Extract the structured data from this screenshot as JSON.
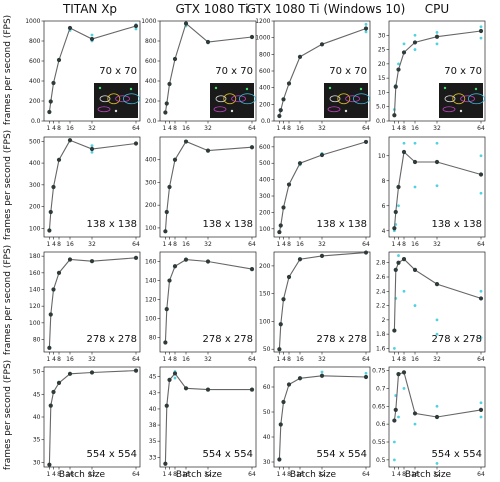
{
  "figure": {
    "ylabel": "frames per second (FPS)",
    "xlabel": "Batch size",
    "columns": [
      "TITAN Xp",
      "GTX 1080 Ti",
      "GTX 1080 Ti (Windows 10)",
      "CPU"
    ],
    "rows": [
      "70 x 70",
      "138 x 138",
      "278 x 278",
      "554 x 554"
    ],
    "x_ticks": [
      1,
      4,
      8,
      16,
      32,
      64
    ],
    "x_tick_labels": [
      "1",
      "4",
      "8",
      "16",
      "32",
      "64"
    ],
    "colors": {
      "line": "#666666",
      "mean_marker": "#2f3b3b",
      "raw_marker": "#4fd3e0",
      "text": "#111111"
    }
  },
  "chart_data": [
    {
      "type": "line",
      "column": "TITAN Xp",
      "resolution": "70 x 70",
      "ylim": [
        0,
        1000
      ],
      "yticks": [
        0,
        200,
        400,
        600,
        800,
        1000
      ],
      "x": [
        1,
        2,
        4,
        8,
        16,
        32,
        64
      ],
      "values": [
        90,
        195,
        380,
        610,
        930,
        820,
        950
      ],
      "raw": [
        [
          16,
          905
        ],
        [
          32,
          860
        ],
        [
          32,
          800
        ],
        [
          64,
          920
        ],
        [
          64,
          965
        ]
      ]
    },
    {
      "type": "line",
      "column": "GTX 1080 Ti",
      "resolution": "70 x 70",
      "ylim": [
        0,
        1000
      ],
      "yticks": [
        0,
        200,
        400,
        600,
        800,
        1000
      ],
      "x": [
        1,
        2,
        4,
        8,
        16,
        32,
        64
      ],
      "values": [
        85,
        175,
        370,
        620,
        975,
        790,
        840
      ],
      "raw": [
        [
          16,
          950
        ],
        [
          32,
          780
        ]
      ]
    },
    {
      "type": "line",
      "column": "GTX 1080 Ti (Windows 10)",
      "resolution": "70 x 70",
      "ylim": [
        0,
        1200
      ],
      "yticks": [
        0,
        200,
        400,
        600,
        800,
        1000,
        1200
      ],
      "x": [
        1,
        2,
        4,
        8,
        16,
        32,
        64
      ],
      "values": [
        60,
        130,
        260,
        450,
        770,
        920,
        1110
      ],
      "raw": [
        [
          64,
          1160
        ],
        [
          64,
          1070
        ]
      ]
    },
    {
      "type": "line",
      "column": "CPU",
      "resolution": "70 x 70",
      "ylim": [
        0,
        35
      ],
      "yticks": [
        0,
        5,
        10,
        15,
        20,
        25,
        30
      ],
      "x": [
        1,
        2,
        4,
        8,
        16,
        32,
        64
      ],
      "values": [
        2,
        12,
        18,
        24,
        27.5,
        29.5,
        31.5
      ],
      "raw": [
        [
          1,
          4
        ],
        [
          2,
          12.5
        ],
        [
          4,
          20
        ],
        [
          8,
          27
        ],
        [
          16,
          30
        ],
        [
          16,
          25
        ],
        [
          32,
          31
        ],
        [
          32,
          27
        ],
        [
          64,
          33
        ],
        [
          64,
          29
        ]
      ]
    },
    {
      "type": "line",
      "column": "TITAN Xp",
      "resolution": "138 x 138",
      "ylim": [
        60,
        520
      ],
      "yticks": [
        100,
        200,
        300,
        400,
        500
      ],
      "x": [
        1,
        2,
        4,
        8,
        16,
        32,
        64
      ],
      "values": [
        90,
        175,
        290,
        415,
        505,
        465,
        490
      ],
      "raw": [
        [
          32,
          450
        ],
        [
          32,
          480
        ]
      ]
    },
    {
      "type": "line",
      "column": "GTX 1080 Ti",
      "resolution": "138 x 138",
      "ylim": [
        60,
        500
      ],
      "yticks": [
        100,
        200,
        300,
        400
      ],
      "x": [
        1,
        2,
        4,
        8,
        16,
        32,
        64
      ],
      "values": [
        85,
        170,
        280,
        400,
        480,
        440,
        455
      ],
      "raw": []
    },
    {
      "type": "line",
      "column": "GTX 1080 Ti (Windows 10)",
      "resolution": "138 x 138",
      "ylim": [
        50,
        660
      ],
      "yticks": [
        100,
        200,
        300,
        400,
        500,
        600
      ],
      "x": [
        1,
        2,
        4,
        8,
        16,
        32,
        64
      ],
      "values": [
        80,
        120,
        230,
        370,
        500,
        550,
        630
      ],
      "raw": [
        [
          16,
          490
        ],
        [
          32,
          560
        ]
      ]
    },
    {
      "type": "line",
      "column": "CPU",
      "resolution": "138 x 138",
      "ylim": [
        3.5,
        11.5
      ],
      "yticks": [
        4,
        6,
        8,
        10
      ],
      "x": [
        1,
        2,
        4,
        8,
        16,
        32,
        64
      ],
      "values": [
        4.2,
        5.5,
        7.5,
        10.3,
        9.5,
        9.5,
        8.5
      ],
      "raw": [
        [
          1,
          4.0
        ],
        [
          2,
          4.5
        ],
        [
          4,
          6
        ],
        [
          8,
          11
        ],
        [
          16,
          11
        ],
        [
          16,
          7.5
        ],
        [
          32,
          11
        ],
        [
          32,
          7.6
        ],
        [
          64,
          10
        ],
        [
          64,
          7
        ]
      ]
    },
    {
      "type": "line",
      "column": "TITAN Xp",
      "resolution": "278 x 278",
      "ylim": [
        65,
        185
      ],
      "yticks": [
        80,
        100,
        120,
        140,
        160,
        180
      ],
      "x": [
        1,
        2,
        4,
        8,
        16,
        32,
        64
      ],
      "values": [
        70,
        110,
        140,
        160,
        176,
        174,
        178
      ],
      "raw": []
    },
    {
      "type": "line",
      "column": "GTX 1080 Ti",
      "resolution": "278 x 278",
      "ylim": [
        65,
        170
      ],
      "yticks": [
        80,
        100,
        120,
        140,
        160
      ],
      "x": [
        1,
        2,
        4,
        8,
        16,
        32,
        64
      ],
      "values": [
        75,
        110,
        140,
        155,
        162,
        160,
        152
      ],
      "raw": []
    },
    {
      "type": "line",
      "column": "GTX 1080 Ti (Windows 10)",
      "resolution": "278 x 278",
      "ylim": [
        45,
        225
      ],
      "yticks": [
        50,
        100,
        150,
        200
      ],
      "x": [
        1,
        2,
        4,
        8,
        16,
        32,
        64
      ],
      "values": [
        50,
        95,
        140,
        180,
        212,
        218,
        224
      ],
      "raw": []
    },
    {
      "type": "line",
      "column": "CPU",
      "resolution": "278 x 278",
      "ylim": [
        1.55,
        2.95
      ],
      "yticks": [
        1.6,
        1.8,
        2.0,
        2.2,
        2.4,
        2.6,
        2.8
      ],
      "x": [
        1,
        2,
        4,
        8,
        16,
        32,
        64
      ],
      "values": [
        1.85,
        2.7,
        2.8,
        2.85,
        2.7,
        2.5,
        2.3
      ],
      "raw": [
        [
          1,
          1.6
        ],
        [
          2,
          2.3
        ],
        [
          4,
          2.9
        ],
        [
          8,
          2.4
        ],
        [
          16,
          2.2
        ],
        [
          32,
          2.0
        ],
        [
          32,
          1.8
        ],
        [
          64,
          2.4
        ],
        [
          64,
          1.75
        ]
      ]
    },
    {
      "type": "line",
      "column": "TITAN Xp",
      "resolution": "554 x 554",
      "ylim": [
        29,
        51
      ],
      "yticks": [
        30,
        35,
        40,
        45,
        50
      ],
      "x": [
        1,
        2,
        4,
        8,
        16,
        32,
        64
      ],
      "values": [
        29.5,
        42.5,
        45.5,
        47.5,
        49.5,
        49.8,
        50.2
      ],
      "raw": []
    },
    {
      "type": "line",
      "column": "GTX 1080 Ti",
      "resolution": "554 x 554",
      "ylim": [
        31,
        46.5
      ],
      "yticks": [
        32.5,
        35.0,
        37.5,
        40.0,
        42.5,
        45.0
      ],
      "x": [
        1,
        2,
        4,
        8,
        16,
        32,
        64
      ],
      "values": [
        31.5,
        40.5,
        44.5,
        45.5,
        43.2,
        43,
        43
      ],
      "raw": [
        [
          8,
          45.8
        ],
        [
          8,
          44.8
        ]
      ]
    },
    {
      "type": "line",
      "column": "GTX 1080 Ti (Windows 10)",
      "resolution": "554 x 554",
      "ylim": [
        28,
        68
      ],
      "yticks": [
        30,
        40,
        50,
        60
      ],
      "x": [
        1,
        2,
        4,
        8,
        16,
        32,
        64
      ],
      "values": [
        31,
        45,
        54,
        61,
        63.5,
        64.5,
        64
      ],
      "raw": [
        [
          32,
          66
        ],
        [
          64,
          65.5
        ]
      ]
    },
    {
      "type": "line",
      "column": "CPU",
      "resolution": "554 x 554",
      "ylim": [
        0.48,
        0.76
      ],
      "yticks": [
        0.5,
        0.55,
        0.6,
        0.65,
        0.7,
        0.75
      ],
      "x": [
        1,
        2,
        4,
        8,
        16,
        32,
        64
      ],
      "values": [
        0.61,
        0.64,
        0.74,
        0.745,
        0.63,
        0.62,
        0.64
      ],
      "raw": [
        [
          1,
          0.55
        ],
        [
          1,
          0.5
        ],
        [
          2,
          0.68
        ],
        [
          4,
          0.62
        ],
        [
          8,
          0.7
        ],
        [
          16,
          0.6
        ],
        [
          32,
          0.65
        ],
        [
          32,
          0.49
        ],
        [
          64,
          0.66
        ],
        [
          64,
          0.62
        ]
      ]
    }
  ]
}
